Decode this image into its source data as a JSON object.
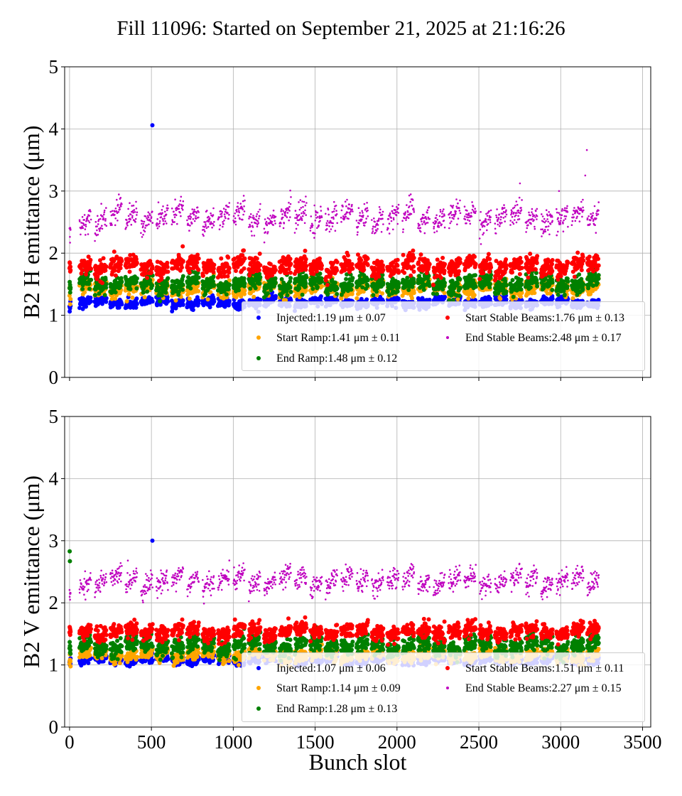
{
  "figure": {
    "title": "Fill 11096: Started on September 21, 2025 at 21:16:26"
  },
  "colors": {
    "injected": "#0000ff",
    "start_ramp": "#ffa500",
    "end_ramp": "#008000",
    "start_stable": "#ff0000",
    "end_stable": "#bf00bf",
    "grid": "#b0b0b0"
  },
  "chart_data": [
    {
      "type": "scatter",
      "title": "",
      "xlabel": "",
      "ylabel": "B2 H emittance (μm)",
      "xlim": [
        -30,
        3550
      ],
      "ylim": [
        0,
        5
      ],
      "xticks": [
        0,
        500,
        1000,
        1500,
        2000,
        2500,
        3000,
        3500
      ],
      "yticks": [
        "0",
        "1",
        "2",
        "3",
        "4",
        "5"
      ],
      "grid": true,
      "legend_placement": "lower right",
      "x_range_of_bunches": [
        0,
        3250
      ],
      "series": [
        {
          "name": "Injected:1.19 μm ± 0.07",
          "key": "injected",
          "mean": 1.19,
          "std": 0.07,
          "marker": "dot",
          "outliers": [
            {
              "x": 506,
              "y": 4.06
            }
          ]
        },
        {
          "name": "Start Ramp:1.41 μm ± 0.11",
          "key": "start_ramp",
          "mean": 1.41,
          "std": 0.11,
          "marker": "dot"
        },
        {
          "name": "End Ramp:1.48 μm ± 0.12",
          "key": "end_ramp",
          "mean": 1.48,
          "std": 0.12,
          "marker": "dot"
        },
        {
          "name": "Start Stable Beams:1.76 μm ± 0.13",
          "key": "start_stable",
          "mean": 1.76,
          "std": 0.13,
          "marker": "dot"
        },
        {
          "name": "End Stable Beams:2.48 μm ± 0.17",
          "key": "end_stable",
          "mean": 2.48,
          "std": 0.17,
          "marker": "point",
          "outliers": [
            {
              "x": 3160,
              "y": 3.66
            },
            {
              "x": 3150,
              "y": 3.25
            },
            {
              "x": 2990,
              "y": 3.0
            }
          ]
        }
      ]
    },
    {
      "type": "scatter",
      "title": "",
      "xlabel": "Bunch slot",
      "ylabel": "B2 V emittance (μm)",
      "xlim": [
        -30,
        3550
      ],
      "ylim": [
        0,
        5
      ],
      "xticks": [
        0,
        500,
        1000,
        1500,
        2000,
        2500,
        3000,
        3500
      ],
      "yticks": [
        "0",
        "1",
        "2",
        "3",
        "4",
        "5"
      ],
      "grid": true,
      "legend_placement": "lower right",
      "x_range_of_bunches": [
        0,
        3250
      ],
      "series": [
        {
          "name": "Injected:1.07 μm ± 0.06",
          "key": "injected",
          "mean": 1.07,
          "std": 0.06,
          "marker": "dot",
          "outliers": [
            {
              "x": 506,
              "y": 3.0
            }
          ]
        },
        {
          "name": "Start Ramp:1.14 μm ± 0.09",
          "key": "start_ramp",
          "mean": 1.14,
          "std": 0.09,
          "marker": "dot"
        },
        {
          "name": "End Ramp:1.28 μm ± 0.13",
          "key": "end_ramp",
          "mean": 1.28,
          "std": 0.13,
          "marker": "dot",
          "outliers": [
            {
              "x": 1,
              "y": 2.83
            },
            {
              "x": 2,
              "y": 2.67
            }
          ]
        },
        {
          "name": "Start Stable Beams:1.51 μm ± 0.11",
          "key": "start_stable",
          "mean": 1.51,
          "std": 0.11,
          "marker": "dot"
        },
        {
          "name": "End Stable Beams:2.27 μm ± 0.15",
          "key": "end_stable",
          "mean": 2.27,
          "std": 0.15,
          "marker": "point"
        }
      ]
    }
  ]
}
